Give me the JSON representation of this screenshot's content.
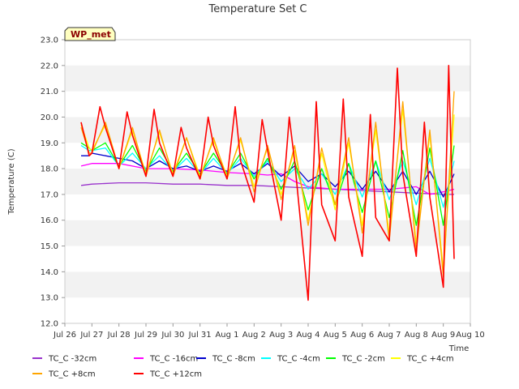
{
  "chart_data": {
    "type": "line",
    "title": "Temperature Set C",
    "xlabel": "Time",
    "ylabel": "Temperature (C)",
    "ylim": [
      12.0,
      23.0
    ],
    "yticks": [
      "12.0",
      "13.0",
      "14.0",
      "15.0",
      "16.0",
      "17.0",
      "18.0",
      "19.0",
      "20.0",
      "21.0",
      "22.0",
      "23.0"
    ],
    "x_range_days": [
      0,
      15
    ],
    "xticks": [
      {
        "day": 0,
        "label": "Jul 26"
      },
      {
        "day": 1,
        "label": "Jul 27"
      },
      {
        "day": 2,
        "label": "Jul 28"
      },
      {
        "day": 3,
        "label": "Jul 29"
      },
      {
        "day": 4,
        "label": "Jul 30"
      },
      {
        "day": 5,
        "label": "Jul 31"
      },
      {
        "day": 6,
        "label": "Aug 1"
      },
      {
        "day": 7,
        "label": "Aug 2"
      },
      {
        "day": 8,
        "label": "Aug 3"
      },
      {
        "day": 9,
        "label": "Aug 4"
      },
      {
        "day": 10,
        "label": "Aug 5"
      },
      {
        "day": 11,
        "label": "Aug 6"
      },
      {
        "day": 12,
        "label": "Aug 7"
      },
      {
        "day": 13,
        "label": "Aug 8"
      },
      {
        "day": 14,
        "label": "Aug 9"
      },
      {
        "day": 15,
        "label": "Aug 10"
      }
    ],
    "badge": "WP_met",
    "grid": "horizontal bands",
    "legend_position": "bottom",
    "series": [
      {
        "name": "TC_C -32cm",
        "color": "#9932cc",
        "x": [
          0.6,
          1,
          2,
          3,
          4,
          5,
          6,
          7,
          8,
          9,
          10,
          11,
          12,
          13,
          14,
          14.4
        ],
        "y": [
          17.35,
          17.4,
          17.45,
          17.45,
          17.4,
          17.4,
          17.35,
          17.35,
          17.3,
          17.25,
          17.2,
          17.15,
          17.1,
          17.05,
          17.0,
          17.0
        ]
      },
      {
        "name": "TC_C -16cm",
        "color": "#ff00ff",
        "x": [
          0.6,
          1,
          2,
          3,
          4,
          5,
          6,
          7,
          7.5,
          8,
          8.5,
          9,
          10,
          11,
          12,
          13,
          13.5,
          14,
          14.4
        ],
        "y": [
          18.1,
          18.2,
          18.2,
          18.0,
          18.0,
          17.95,
          17.85,
          17.8,
          17.75,
          17.8,
          17.5,
          17.3,
          17.2,
          17.2,
          17.2,
          17.3,
          17.0,
          17.1,
          17.2
        ]
      },
      {
        "name": "TC_C -8cm",
        "color": "#0000cd",
        "x": [
          0.6,
          0.9,
          1,
          1.5,
          2,
          2.5,
          3,
          3.5,
          4,
          4.5,
          5,
          5.5,
          6,
          6.5,
          7,
          7.5,
          8,
          8.5,
          9,
          9.5,
          10,
          10.5,
          11,
          11.5,
          12,
          12.5,
          13,
          13.5,
          14,
          14.4
        ],
        "y": [
          18.5,
          18.5,
          18.6,
          18.5,
          18.4,
          18.3,
          18.0,
          18.3,
          18.0,
          18.1,
          17.9,
          18.1,
          17.9,
          18.2,
          17.8,
          18.2,
          17.7,
          18.1,
          17.5,
          17.8,
          17.3,
          17.9,
          17.2,
          17.9,
          17.1,
          17.9,
          17.0,
          17.9,
          16.9,
          17.8
        ]
      },
      {
        "name": "TC_C -4cm",
        "color": "#00ffff",
        "x": [
          0.6,
          0.9,
          1,
          1.5,
          2,
          2.5,
          3,
          3.5,
          4,
          4.5,
          5,
          5.5,
          6,
          6.5,
          7,
          7.5,
          8,
          8.5,
          9,
          9.5,
          10,
          10.5,
          11,
          11.5,
          12,
          12.5,
          13,
          13.5,
          14,
          14.4
        ],
        "y": [
          18.9,
          18.7,
          18.7,
          18.8,
          18.1,
          18.6,
          18.0,
          18.5,
          17.9,
          18.4,
          17.8,
          18.4,
          17.8,
          18.4,
          17.7,
          18.3,
          17.5,
          18.0,
          17.2,
          17.8,
          17.0,
          18.2,
          16.9,
          18.3,
          16.8,
          18.3,
          16.6,
          18.4,
          16.5,
          18.3
        ]
      },
      {
        "name": "TC_C -2cm",
        "color": "#00ff00",
        "x": [
          0.6,
          0.9,
          1,
          1.5,
          2,
          2.5,
          3,
          3.5,
          4,
          4.5,
          5,
          5.5,
          6,
          6.5,
          7,
          7.5,
          8,
          8.5,
          9,
          9.5,
          10,
          10.5,
          11,
          11.5,
          12,
          12.5,
          13,
          13.5,
          14,
          14.4
        ],
        "y": [
          19.0,
          18.8,
          18.7,
          19.0,
          18.1,
          18.9,
          17.9,
          18.8,
          17.9,
          18.6,
          17.8,
          18.6,
          17.8,
          18.6,
          17.6,
          18.4,
          17.2,
          18.3,
          16.4,
          18.0,
          16.6,
          18.2,
          16.3,
          18.3,
          16.1,
          18.7,
          15.8,
          18.8,
          15.8,
          18.9
        ]
      },
      {
        "name": "TC_C +4cm",
        "color": "#ffff00",
        "x": [
          0.6,
          0.9,
          1,
          1.5,
          2,
          2.5,
          3,
          3.5,
          4,
          4.5,
          5,
          5.5,
          6,
          6.5,
          7,
          7.5,
          8,
          8.5,
          9,
          9.5,
          10,
          10.5,
          11,
          11.5,
          12,
          12.5,
          13,
          13.5,
          14,
          14.4
        ],
        "y": [
          19.7,
          18.8,
          18.7,
          19.7,
          18.0,
          19.5,
          17.8,
          19.4,
          17.8,
          19.2,
          17.7,
          19.1,
          17.7,
          19.1,
          17.3,
          18.8,
          17.0,
          18.7,
          16.0,
          18.6,
          16.4,
          19.0,
          15.8,
          19.5,
          15.5,
          20.3,
          15.1,
          19.3,
          14.1,
          20.1
        ]
      },
      {
        "name": "TC_C +8cm",
        "color": "#ffa500",
        "x": [
          0.6,
          0.9,
          1,
          1.5,
          2,
          2.5,
          3,
          3.5,
          4,
          4.5,
          5,
          5.5,
          6,
          6.5,
          7,
          7.5,
          8,
          8.5,
          9,
          9.5,
          10,
          10.5,
          11,
          11.5,
          12,
          12.5,
          13,
          13.5,
          14,
          14.4
        ],
        "y": [
          19.6,
          18.6,
          18.6,
          19.8,
          18.0,
          19.6,
          17.7,
          19.5,
          17.7,
          19.2,
          17.6,
          19.2,
          17.6,
          19.2,
          17.1,
          18.9,
          16.8,
          18.9,
          15.8,
          18.8,
          16.6,
          19.2,
          15.5,
          19.8,
          15.2,
          20.6,
          14.8,
          19.5,
          13.8,
          21.0
        ]
      },
      {
        "name": "TC_C +12cm",
        "color": "#ff0000",
        "x": [
          0.6,
          0.9,
          1,
          1.3,
          1.5,
          2,
          2.3,
          2.5,
          3,
          3.3,
          3.5,
          4,
          4.3,
          4.5,
          5,
          5.3,
          5.5,
          6,
          6.3,
          6.5,
          7,
          7.3,
          7.5,
          8,
          8.3,
          8.5,
          9,
          9.3,
          9.5,
          10,
          10.3,
          10.5,
          11,
          11.3,
          11.5,
          12,
          12.3,
          12.5,
          13,
          13.3,
          13.5,
          14,
          14.2,
          14.4
        ],
        "y": [
          19.8,
          18.5,
          18.6,
          20.4,
          19.6,
          18.0,
          20.2,
          19.3,
          17.7,
          20.3,
          19.0,
          17.7,
          19.6,
          18.8,
          17.6,
          20.0,
          18.9,
          17.6,
          20.4,
          18.3,
          16.7,
          19.9,
          18.7,
          16.0,
          20.0,
          18.3,
          12.9,
          20.6,
          16.6,
          15.2,
          20.7,
          16.9,
          14.6,
          20.1,
          16.1,
          15.2,
          21.9,
          17.8,
          14.6,
          19.8,
          16.9,
          13.4,
          22.0,
          14.5
        ]
      }
    ]
  }
}
